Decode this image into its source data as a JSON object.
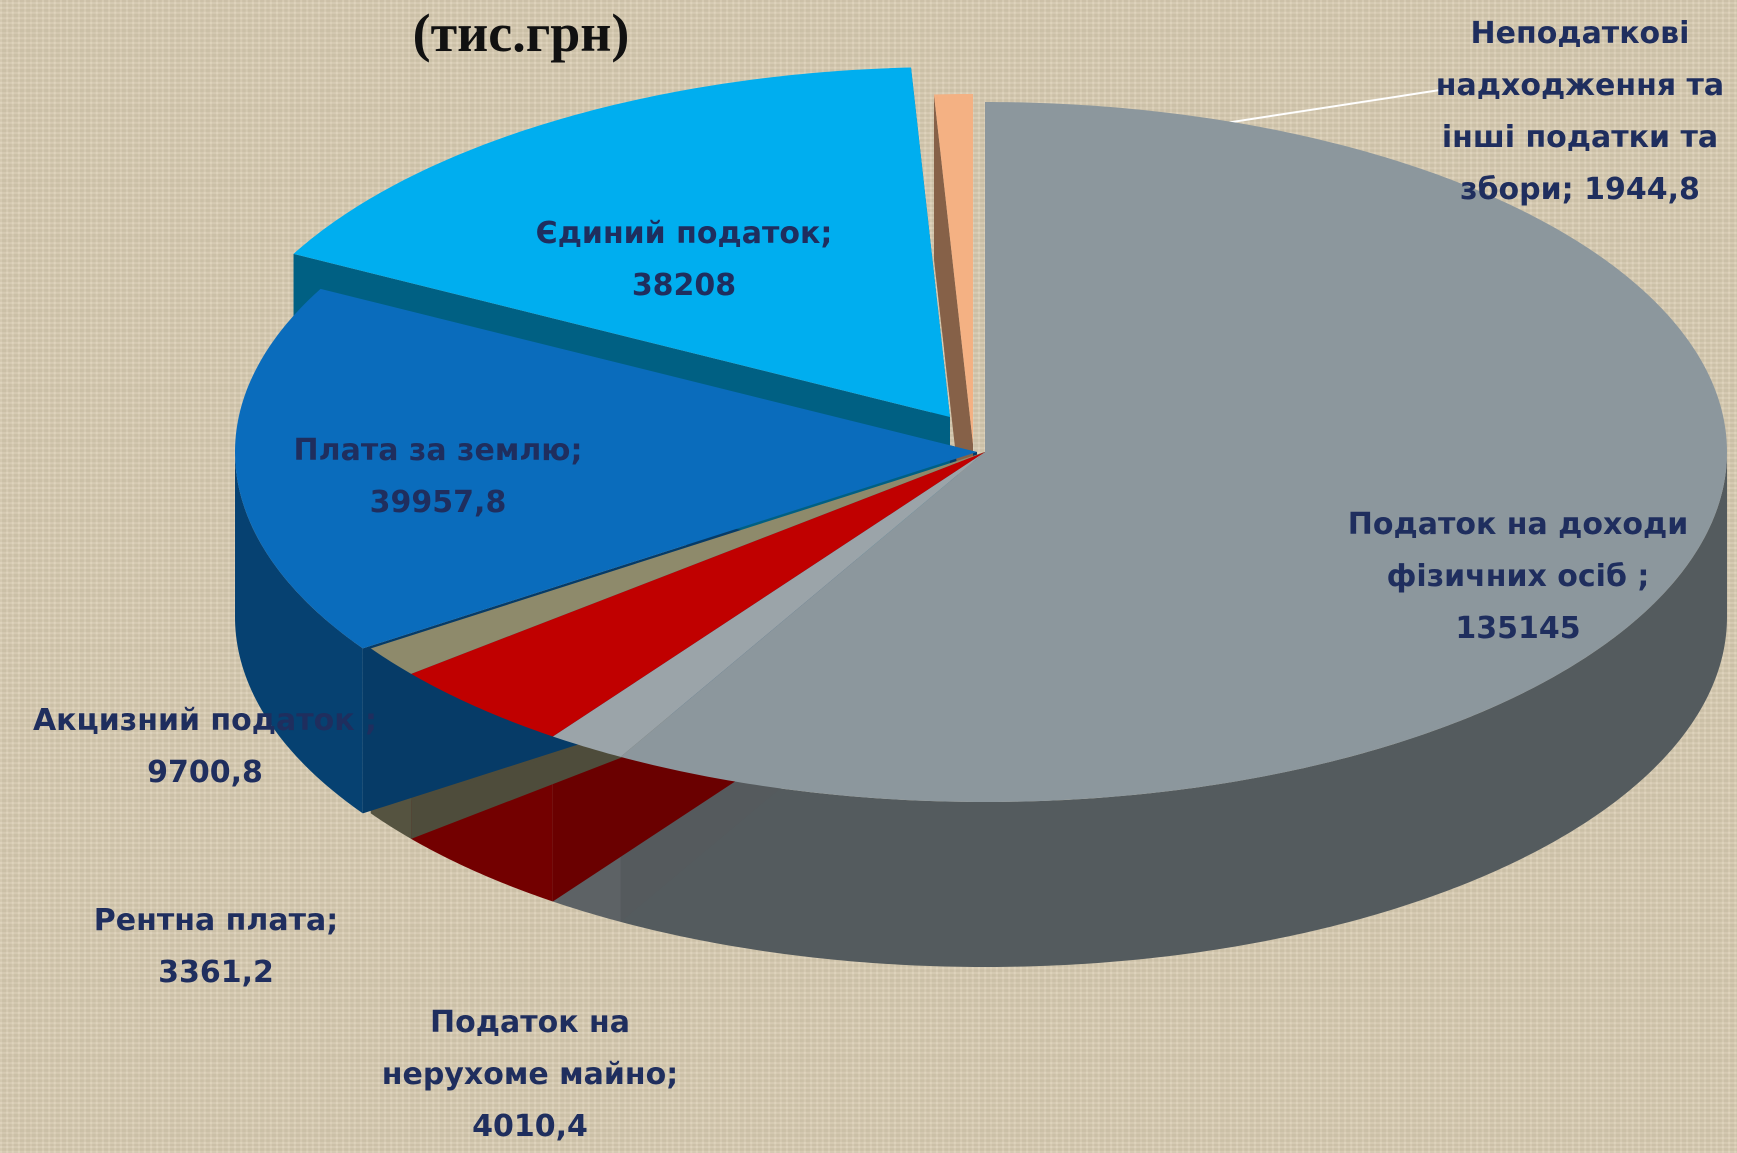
{
  "chart_data": {
    "type": "pie",
    "title": "(тис.грн)",
    "categories": [
      "Податок на доходи фізичних осіб ;",
      "Податок на нерухоме майно;",
      "Акцизний податок ;",
      "Рентна плата;",
      "Плата за землю;",
      "Єдиний податок;",
      "Неподаткові надходження та інші податки та збори;"
    ],
    "values": [
      135145,
      4010.4,
      9700.8,
      3361.2,
      39957.8,
      38208,
      1944.8
    ],
    "value_labels": [
      "135145",
      "4010,4",
      "9700,8",
      "3361,2",
      "39957,8",
      "38208",
      "1944,8"
    ],
    "colors": [
      "#8c979d",
      "#9ba4a9",
      "#c00000",
      "#8e8a6b",
      "#0a6cbc",
      "#00aeef",
      "#f4b183"
    ]
  }
}
